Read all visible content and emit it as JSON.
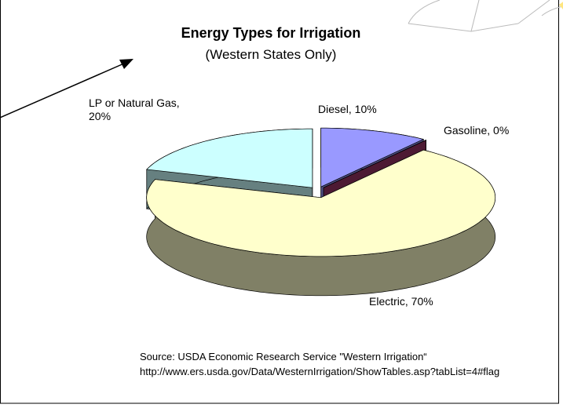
{
  "chart_data": {
    "type": "pie3d",
    "title": "Energy Types for Irrigation",
    "subtitle": "(Western States Only)",
    "values": [
      10,
      0,
      70,
      20
    ],
    "value_labels": [
      "Diesel, 10%",
      "Gasoline, 0%",
      "Electric, 70%",
      "LP or Natural Gas, 20%"
    ],
    "colors": [
      "#9999ff",
      "#993366",
      "#ffffcc",
      "#ccffff"
    ],
    "source": [
      "Source:  USDA Economic Research Service \"Western Irrigation“",
      "http://www.ers.usda.gov/Data/WesternIrrigation/ShowTables.asp?tabList=4#flag"
    ]
  }
}
